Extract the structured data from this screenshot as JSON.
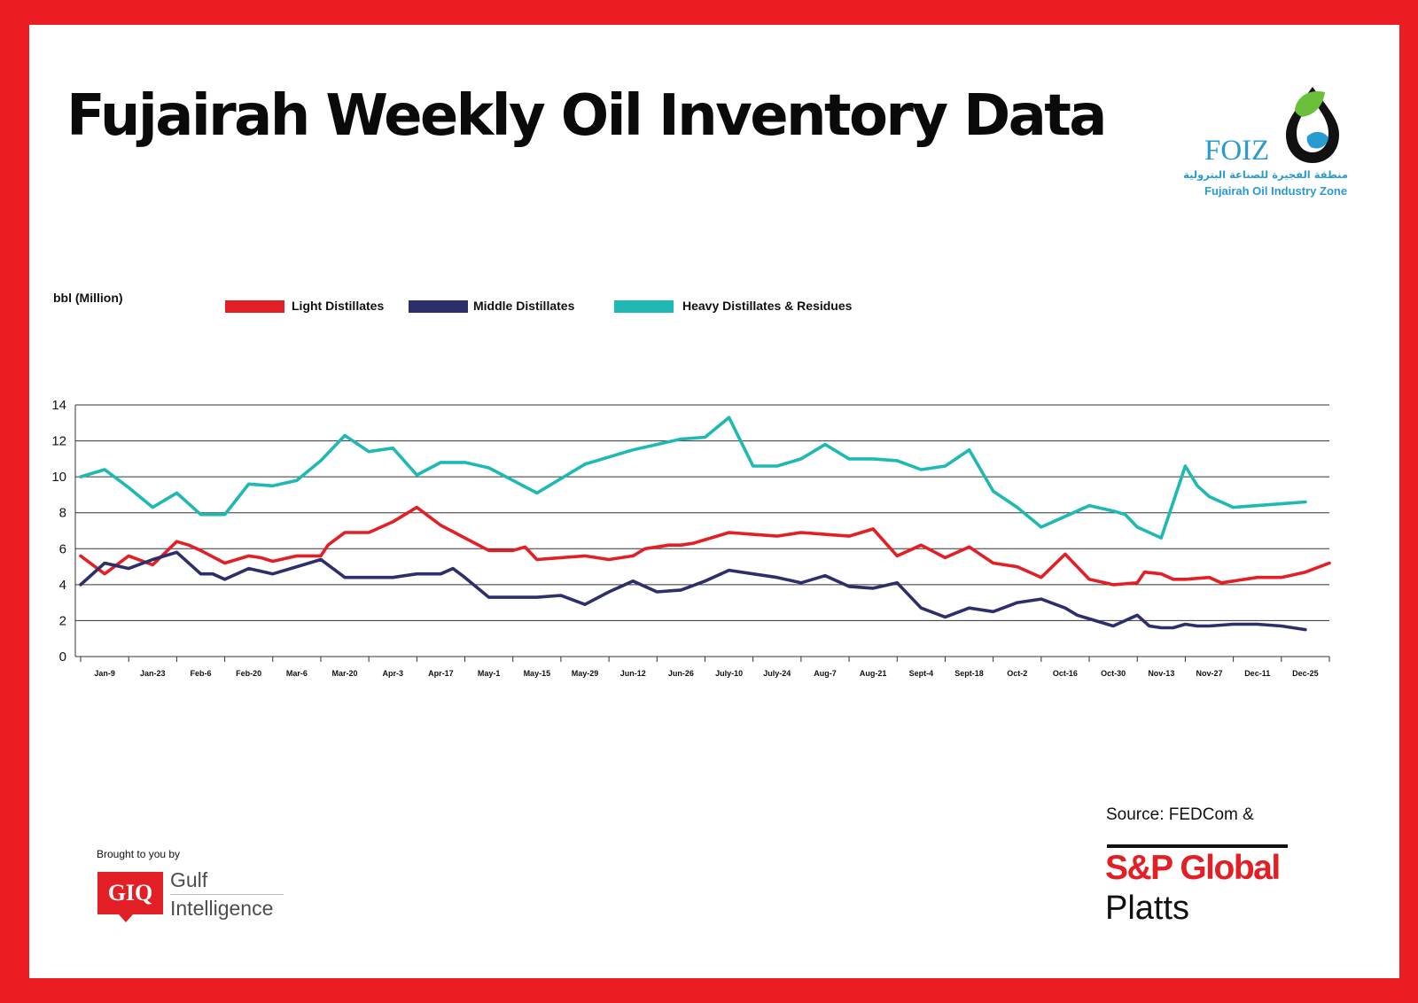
{
  "title": "Fujairah Weekly Oil Inventory Data",
  "logo": {
    "wordmark": "FOIZ",
    "arabic_name": "منطقة الفجيرة للصناعة البترولية",
    "english_name": "Fujairah Oil Industry Zone"
  },
  "footer": {
    "brought_by": "Brought to you by",
    "giq_badge": "GIQ",
    "giq_name_line1": "Gulf",
    "giq_name_line2": "Intelligence",
    "source": "Source: FEDCom &",
    "sp_brand": "S&P Global",
    "sp_product": "Platts"
  },
  "colors": {
    "frame": "#ec1c24",
    "light": "#e31f26",
    "middle": "#2d2f6b",
    "heavy": "#1fb9b3",
    "grid": "#333333"
  },
  "chart_data": {
    "type": "line",
    "ylabel": "bbl (Million)",
    "ylim": [
      0,
      14
    ],
    "yticks": [
      0,
      2,
      4,
      6,
      8,
      10,
      12,
      14
    ],
    "grid": true,
    "legend_position": "top",
    "x_tick_labels": [
      {
        "label": "Jan-9",
        "week": 1
      },
      {
        "label": "Jan-23",
        "week": 3
      },
      {
        "label": "Feb-6",
        "week": 5
      },
      {
        "label": "Feb-20",
        "week": 7
      },
      {
        "label": "Mar-6",
        "week": 9
      },
      {
        "label": "Mar-20",
        "week": 11
      },
      {
        "label": "Apr-3",
        "week": 13
      },
      {
        "label": "Apr-17",
        "week": 15
      },
      {
        "label": "May-1",
        "week": 17
      },
      {
        "label": "May-15",
        "week": 19
      },
      {
        "label": "May-29",
        "week": 21
      },
      {
        "label": "Jun-12",
        "week": 23
      },
      {
        "label": "Jun-26",
        "week": 25
      },
      {
        "label": "July-10",
        "week": 27
      },
      {
        "label": "July-24",
        "week": 29
      },
      {
        "label": "Aug-7",
        "week": 31
      },
      {
        "label": "Aug-21",
        "week": 33
      },
      {
        "label": "Sept-4",
        "week": 35
      },
      {
        "label": "Sept-18",
        "week": 37
      },
      {
        "label": "Oct-2",
        "week": 39
      },
      {
        "label": "Oct-16",
        "week": 41
      },
      {
        "label": "Oct-30",
        "week": 43
      },
      {
        "label": "Nov-13",
        "week": 45
      },
      {
        "label": "Nov-27",
        "week": 47
      },
      {
        "label": "Dec-11",
        "week": 49
      },
      {
        "label": "Dec-25",
        "week": 51
      }
    ],
    "series": [
      {
        "name": "Light Distillates",
        "color": "#e31f26",
        "points": [
          [
            0,
            5.6
          ],
          [
            1,
            4.6
          ],
          [
            2,
            5.6
          ],
          [
            3,
            5.1
          ],
          [
            4,
            6.4
          ],
          [
            4.5,
            6.2
          ],
          [
            5,
            5.9
          ],
          [
            6,
            5.2
          ],
          [
            6.5,
            5.4
          ],
          [
            7,
            5.6
          ],
          [
            7.5,
            5.5
          ],
          [
            8,
            5.3
          ],
          [
            9,
            5.6
          ],
          [
            10,
            5.6
          ],
          [
            10.3,
            6.2
          ],
          [
            11,
            6.9
          ],
          [
            12,
            6.9
          ],
          [
            13,
            7.5
          ],
          [
            14,
            8.3
          ],
          [
            15,
            7.3
          ],
          [
            16,
            6.6
          ],
          [
            17,
            5.9
          ],
          [
            18,
            5.9
          ],
          [
            18.5,
            6.1
          ],
          [
            19,
            5.4
          ],
          [
            20,
            5.5
          ],
          [
            21,
            5.6
          ],
          [
            22,
            5.4
          ],
          [
            23,
            5.6
          ],
          [
            23.5,
            6.0
          ],
          [
            24,
            6.1
          ],
          [
            24.5,
            6.2
          ],
          [
            25,
            6.2
          ],
          [
            25.5,
            6.3
          ],
          [
            26,
            6.5
          ],
          [
            26.5,
            6.7
          ],
          [
            27,
            6.9
          ],
          [
            28,
            6.8
          ],
          [
            29,
            6.7
          ],
          [
            30,
            6.9
          ],
          [
            31,
            6.8
          ],
          [
            32,
            6.7
          ],
          [
            33,
            7.1
          ],
          [
            34,
            5.6
          ],
          [
            35,
            6.2
          ],
          [
            36,
            5.5
          ],
          [
            37,
            6.1
          ],
          [
            38,
            5.2
          ],
          [
            39,
            5.0
          ],
          [
            40,
            4.4
          ],
          [
            41,
            5.7
          ],
          [
            42,
            4.3
          ],
          [
            43,
            4.0
          ],
          [
            44,
            4.1
          ],
          [
            44.3,
            4.7
          ],
          [
            45,
            4.6
          ],
          [
            45.5,
            4.3
          ],
          [
            46,
            4.3
          ],
          [
            47,
            4.4
          ],
          [
            47.5,
            4.1
          ],
          [
            48,
            4.2
          ],
          [
            49,
            4.4
          ],
          [
            50,
            4.4
          ],
          [
            51,
            4.7
          ],
          [
            52,
            5.2
          ]
        ]
      },
      {
        "name": "Middle Distillates",
        "color": "#2d2f6b",
        "points": [
          [
            0,
            4.0
          ],
          [
            1,
            5.2
          ],
          [
            2,
            4.9
          ],
          [
            3,
            5.4
          ],
          [
            4,
            5.8
          ],
          [
            5,
            4.6
          ],
          [
            5.5,
            4.6
          ],
          [
            6,
            4.3
          ],
          [
            7,
            4.9
          ],
          [
            8,
            4.6
          ],
          [
            9,
            5.0
          ],
          [
            10,
            5.4
          ],
          [
            11,
            4.4
          ],
          [
            12,
            4.4
          ],
          [
            13,
            4.4
          ],
          [
            14,
            4.6
          ],
          [
            15,
            4.6
          ],
          [
            15.5,
            4.9
          ],
          [
            16,
            4.4
          ],
          [
            17,
            3.3
          ],
          [
            18,
            3.3
          ],
          [
            19,
            3.3
          ],
          [
            20,
            3.4
          ],
          [
            21,
            2.9
          ],
          [
            22,
            3.6
          ],
          [
            23,
            4.2
          ],
          [
            24,
            3.6
          ],
          [
            25,
            3.7
          ],
          [
            26,
            4.2
          ],
          [
            27,
            4.8
          ],
          [
            28,
            4.6
          ],
          [
            29,
            4.4
          ],
          [
            30,
            4.1
          ],
          [
            31,
            4.5
          ],
          [
            32,
            3.9
          ],
          [
            33,
            3.8
          ],
          [
            34,
            4.1
          ],
          [
            35,
            2.7
          ],
          [
            36,
            2.2
          ],
          [
            37,
            2.7
          ],
          [
            38,
            2.5
          ],
          [
            39,
            3.0
          ],
          [
            40,
            3.2
          ],
          [
            41,
            2.7
          ],
          [
            41.5,
            2.3
          ],
          [
            42,
            2.1
          ],
          [
            43,
            1.7
          ],
          [
            43.5,
            2.0
          ],
          [
            44,
            2.3
          ],
          [
            44.5,
            1.7
          ],
          [
            45,
            1.6
          ],
          [
            45.5,
            1.6
          ],
          [
            46,
            1.8
          ],
          [
            46.5,
            1.7
          ],
          [
            47,
            1.7
          ],
          [
            48,
            1.8
          ],
          [
            49,
            1.8
          ],
          [
            50,
            1.7
          ],
          [
            51,
            1.5
          ]
        ]
      },
      {
        "name": "Heavy Distillates & Residues",
        "color": "#1fb9b3",
        "points": [
          [
            0,
            10.0
          ],
          [
            1,
            10.4
          ],
          [
            2,
            9.4
          ],
          [
            3,
            8.3
          ],
          [
            4,
            9.1
          ],
          [
            5,
            7.9
          ],
          [
            6,
            7.9
          ],
          [
            7,
            9.6
          ],
          [
            8,
            9.5
          ],
          [
            9,
            9.8
          ],
          [
            10,
            10.9
          ],
          [
            11,
            12.3
          ],
          [
            12,
            11.4
          ],
          [
            13,
            11.6
          ],
          [
            14,
            10.1
          ],
          [
            15,
            10.8
          ],
          [
            16,
            10.8
          ],
          [
            17,
            10.5
          ],
          [
            18,
            9.8
          ],
          [
            19,
            9.1
          ],
          [
            20,
            9.9
          ],
          [
            21,
            10.7
          ],
          [
            22,
            11.1
          ],
          [
            23,
            11.5
          ],
          [
            24,
            11.8
          ],
          [
            25,
            12.1
          ],
          [
            26,
            12.2
          ],
          [
            27,
            13.3
          ],
          [
            28,
            10.6
          ],
          [
            29,
            10.6
          ],
          [
            30,
            11.0
          ],
          [
            31,
            11.8
          ],
          [
            32,
            11.0
          ],
          [
            33,
            11.0
          ],
          [
            34,
            10.9
          ],
          [
            35,
            10.4
          ],
          [
            36,
            10.6
          ],
          [
            37,
            11.5
          ],
          [
            38,
            9.2
          ],
          [
            39,
            8.3
          ],
          [
            40,
            7.2
          ],
          [
            41,
            7.8
          ],
          [
            42,
            8.4
          ],
          [
            43,
            8.1
          ],
          [
            43.5,
            7.9
          ],
          [
            44,
            7.2
          ],
          [
            45,
            6.6
          ],
          [
            45.5,
            8.6
          ],
          [
            46,
            10.6
          ],
          [
            46.5,
            9.5
          ],
          [
            47,
            8.9
          ],
          [
            48,
            8.3
          ],
          [
            49,
            8.4
          ],
          [
            50,
            8.5
          ],
          [
            51,
            8.6
          ]
        ]
      }
    ]
  }
}
